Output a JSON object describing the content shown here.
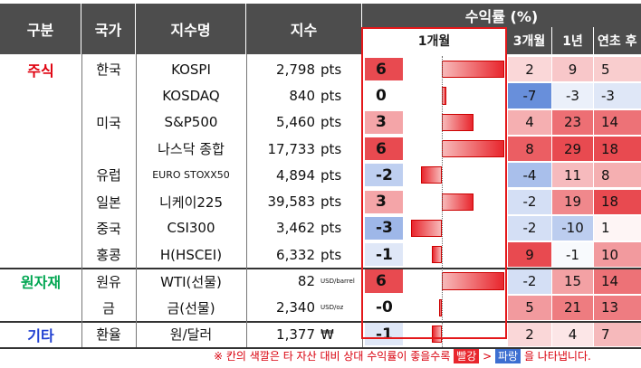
{
  "headers": {
    "category": "구분",
    "country": "국가",
    "index_name": "지수명",
    "index_value": "지수",
    "returns": "수익률 (%)",
    "m1": "1개월",
    "m3": "3개월",
    "y1": "1년",
    "ytd": "연초 후"
  },
  "categories": [
    {
      "label": "주식",
      "color": "#e0000e"
    },
    {
      "label": "원자재",
      "color": "#00a651"
    },
    {
      "label": "기타",
      "color": "#1f3fd1"
    }
  ],
  "rows": [
    {
      "country": "한국",
      "name": "KOSPI",
      "value": "2,798",
      "unit": "pts",
      "m1": "6",
      "m3": "2",
      "y1": "9",
      "ytd": "5"
    },
    {
      "country": "",
      "name": "KOSDAQ",
      "value": "840",
      "unit": "pts",
      "m1": "0",
      "m3": "-7",
      "y1": "-3",
      "ytd": "-3"
    },
    {
      "country": "미국",
      "name": "S&P500",
      "value": "5,460",
      "unit": "pts",
      "m1": "3",
      "m3": "4",
      "y1": "23",
      "ytd": "14"
    },
    {
      "country": "",
      "name": "나스닥 종합",
      "value": "17,733",
      "unit": "pts",
      "m1": "6",
      "m3": "8",
      "y1": "29",
      "ytd": "18"
    },
    {
      "country": "유럽",
      "name": "EURO STOXX50",
      "value": "4,894",
      "unit": "pts",
      "m1": "-2",
      "m3": "-4",
      "y1": "11",
      "ytd": "8"
    },
    {
      "country": "일본",
      "name": "니케이225",
      "value": "39,583",
      "unit": "pts",
      "m1": "3",
      "m3": "-2",
      "y1": "19",
      "ytd": "18"
    },
    {
      "country": "중국",
      "name": "CSI300",
      "value": "3,462",
      "unit": "pts",
      "m1": "-3",
      "m3": "-2",
      "y1": "-10",
      "ytd": "1"
    },
    {
      "country": "홍콩",
      "name": "H(HSCEI)",
      "value": "6,332",
      "unit": "pts",
      "m1": "-1",
      "m3": "9",
      "y1": "-1",
      "ytd": "10"
    },
    {
      "country": "원유",
      "name": "WTI(선물)",
      "value": "82",
      "unit": "USD/barrel",
      "m1": "6",
      "m3": "-2",
      "y1": "15",
      "ytd": "14"
    },
    {
      "country": "금",
      "name": "금(선물)",
      "value": "2,340",
      "unit": "USD/oz",
      "m1": "-0",
      "m3": "5",
      "y1": "21",
      "ytd": "13"
    },
    {
      "country": "환율",
      "name": "원/달러",
      "value": "1,377",
      "unit": "₩",
      "m1": "-1",
      "m3": "2",
      "y1": "4",
      "ytd": "7"
    }
  ],
  "m1_bar_values": [
    6,
    0.4,
    3,
    6,
    -2,
    3,
    -3,
    -1,
    6,
    -0.3,
    -1
  ],
  "footnote": {
    "prefix": "※ 칸의 색깔은 타 자산 대비 상대 수익률이 좋을수록",
    "red_word": "빨강",
    "middle": ">",
    "blue_word": "파랑",
    "suffix": "을 나타냅니다."
  },
  "colors": {
    "header_bg": "#4d4d4d",
    "highlight_border": "#e4181b",
    "positive": "#e8262d",
    "negative": "#3d6fd1"
  }
}
